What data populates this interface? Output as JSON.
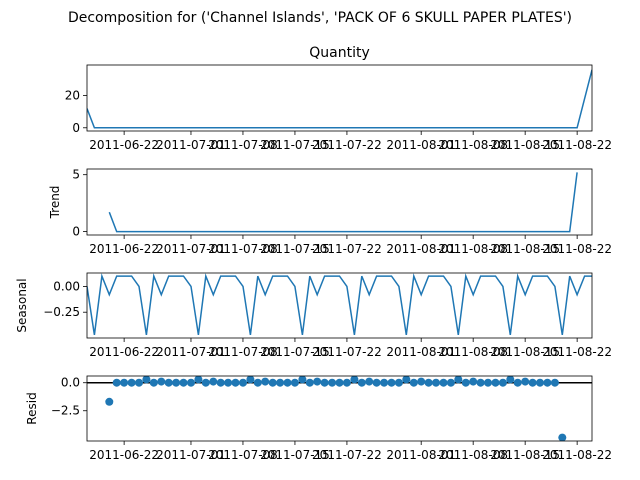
{
  "figure": {
    "suptitle": "Decomposition for ('Channel Islands', 'PACK OF 6 SKULL PAPER PLATES')",
    "x_tick_labels": [
      "2011-06-22",
      "2011-07-01",
      "2011-07-08",
      "2011-07-15",
      "2011-07-22",
      "2011-08-01",
      "2011-08-08",
      "2011-08-15",
      "2011-08-22"
    ]
  },
  "colors": {
    "series": "#1f77b4",
    "axes": "#000000",
    "background": "#ffffff"
  },
  "chart_data": [
    {
      "type": "line",
      "title": "Quantity",
      "ylabel": "",
      "x_start": "2011-06-17",
      "x_end": "2011-08-24",
      "x": [
        "2011-06-17",
        "2011-06-18",
        "2011-08-22",
        "2011-08-24"
      ],
      "values": [
        12,
        0,
        0,
        36
      ],
      "yticks": [
        0,
        20
      ],
      "ylim": [
        -2,
        39
      ]
    },
    {
      "type": "line",
      "title": "",
      "ylabel": "Trend",
      "x": [
        "2011-06-20",
        "2011-06-21",
        "2011-08-21",
        "2011-08-22"
      ],
      "values": [
        1.7,
        0,
        0,
        5.2
      ],
      "yticks": [
        0,
        5
      ],
      "ylim": [
        -0.3,
        5.5
      ]
    },
    {
      "type": "line",
      "title": "",
      "ylabel": "Seasonal",
      "x_start": "2011-06-17",
      "period_values": [
        0.0,
        -0.47,
        0.1,
        -0.08,
        0.1,
        0.1,
        0.1
      ],
      "yticks": [
        0.0,
        -0.25
      ],
      "yticklabels": [
        "0.00",
        "−0.25"
      ],
      "ylim": [
        -0.5,
        0.13
      ]
    },
    {
      "type": "scatter",
      "title": "",
      "ylabel": "Resid",
      "x_start": "2011-06-20",
      "values": [
        -1.7,
        0,
        0,
        0,
        0,
        0.3,
        0,
        0.1,
        0,
        0,
        0,
        0,
        0.3,
        0,
        0.1,
        0,
        0,
        0,
        0,
        0.3,
        0,
        0.1,
        0,
        0,
        0,
        0,
        0.3,
        0,
        0.1,
        0,
        0,
        0,
        0,
        0.3,
        0,
        0.1,
        0,
        0,
        0,
        0,
        0.3,
        0,
        0.1,
        0,
        0,
        0,
        0,
        0.3,
        0,
        0.1,
        0,
        0,
        0,
        0,
        0.3,
        0,
        0.1,
        0,
        0,
        0,
        0,
        -4.9
      ],
      "yticks": [
        0.0,
        -2.5
      ],
      "yticklabels": [
        "0.0",
        "−2.5"
      ],
      "ylim": [
        -5.2,
        0.6
      ],
      "zero_line": true
    }
  ]
}
